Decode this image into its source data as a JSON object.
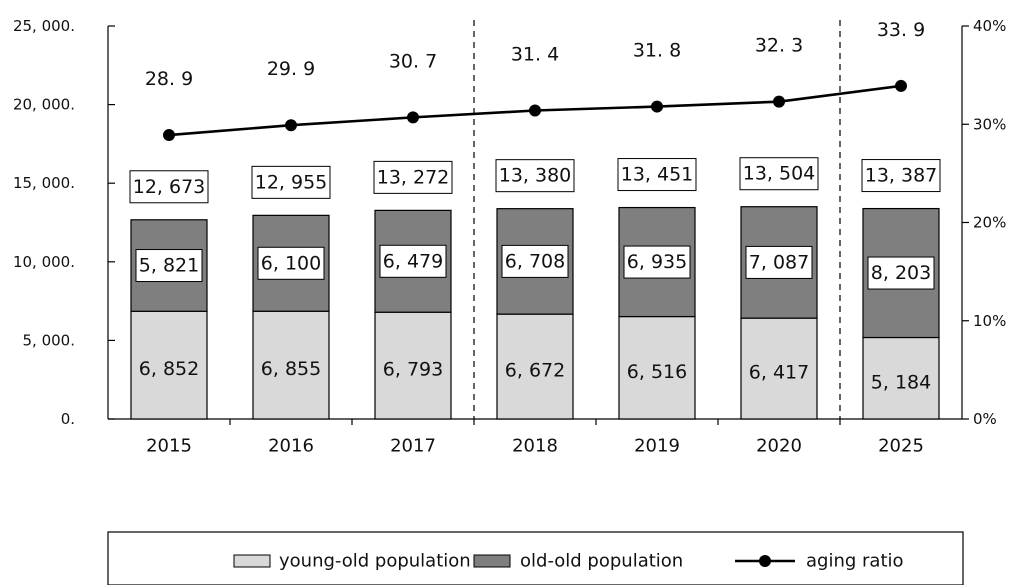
{
  "chart_data": {
    "type": "bar",
    "stacked": true,
    "categories": [
      "2015",
      "2016",
      "2017",
      "2018",
      "2019",
      "2020",
      "2025"
    ],
    "series": [
      {
        "name": "young-old population",
        "values": [
          6852,
          6855,
          6793,
          6672,
          6516,
          6417,
          5184
        ],
        "labels": [
          "6, 852",
          "6, 855",
          "6, 793",
          "6, 672",
          "6, 516",
          "6, 417",
          "5, 184"
        ],
        "color": "#d9d9d9"
      },
      {
        "name": "old-old population",
        "values": [
          5821,
          6100,
          6479,
          6708,
          6935,
          7087,
          8203
        ],
        "labels": [
          "5, 821",
          "6, 100",
          "6, 479",
          "6, 708",
          "6, 935",
          "7, 087",
          "8, 203"
        ],
        "color": "#7f7f7f"
      }
    ],
    "totals": {
      "values": [
        12673,
        12955,
        13272,
        13380,
        13451,
        13504,
        13387
      ],
      "labels": [
        "12, 673",
        "12, 955",
        "13, 272",
        "13, 380",
        "13, 451",
        "13, 504",
        "13, 387"
      ]
    },
    "line": {
      "name": "aging ratio",
      "axis": "right",
      "values": [
        28.9,
        29.9,
        30.7,
        31.4,
        31.8,
        32.3,
        33.9
      ],
      "labels": [
        "28. 9",
        "29. 9",
        "30. 7",
        "31. 4",
        "31. 8",
        "32. 3",
        "33. 9"
      ],
      "color": "#000000"
    },
    "ylim": [
      0,
      25000
    ],
    "y_ticks": [
      0,
      5000,
      10000,
      15000,
      20000,
      25000
    ],
    "y_tick_labels": [
      "0.",
      "5, 000.",
      "10, 000.",
      "15, 000.",
      "20, 000.",
      "25, 000."
    ],
    "y2lim": [
      0,
      40
    ],
    "y2_ticks": [
      0,
      10,
      20,
      30,
      40
    ],
    "y2_tick_labels": [
      "0%",
      "10%",
      "20%",
      "30%",
      "40%"
    ],
    "dividers_after_categories": [
      "2017",
      "2020"
    ],
    "grid": false,
    "legend_position": "bottom",
    "legend": [
      "young-old population",
      "old-old population",
      "aging ratio"
    ]
  }
}
